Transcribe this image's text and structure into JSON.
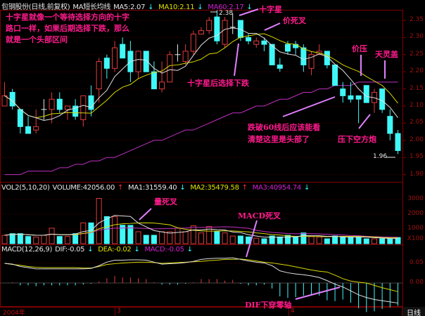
{
  "header": {
    "stock": "包钢股份(日线,前复权)",
    "indicator": "MA短长均线",
    "ma5": "MA5:2.07",
    "ma10": "MA10:2.11",
    "ma60": "MA60:2.17",
    "arrow_down": "↓",
    "arrow_up": "↑"
  },
  "volume_header": {
    "name": "VOL2(5,10,20)",
    "volume": "VOLUME:42056.00",
    "ma1": "MA1:31559.40",
    "ma2": "MA2:35479.58",
    "ma3": "MA3:40954.74"
  },
  "macd_header": {
    "name": "MACD(12,26,9)",
    "dif": "DIF:-0.05",
    "dea": "DEA:-0.02",
    "macd": "MACD:-0.05"
  },
  "annotations": {
    "intro_line1": "十字星就像一个等待选择方向的十字",
    "intro_line2": "路口一样，如果后期选择下跌，那么",
    "intro_line3": "就是一个头部区间",
    "doji": "十字星",
    "price_death_cross": "价死叉",
    "doji_then_fall": "十字星后选择下跌",
    "price_pressure": "价压",
    "heaven_cap": "天灵盖",
    "break60_line1": "跌破60线后应该能看",
    "break60_line2": "清楚这里是头部了",
    "bearish_cannon": "压下空方炮",
    "volume_death_cross": "量死叉",
    "macd_death_cross": "MACD死叉",
    "dif_cross_zero": "DIF下穿零轴",
    "high_label": "2.38",
    "low_label": "1.96"
  },
  "axis": {
    "price_ticks": [
      "2.35",
      "2.30",
      "2.25",
      "2.20",
      "2.15",
      "2.10",
      "2.05",
      "2.00",
      "1.95",
      "1.90"
    ],
    "volume_ticks": [
      "3000",
      "2000",
      "1000"
    ],
    "volume_unit": "X100",
    "macd_ticks": [
      "0.05",
      "0.00"
    ],
    "dates": [
      "2004年",
      "3",
      "4"
    ],
    "period": "日线"
  },
  "colors": {
    "up": "#e03c3c",
    "down": "#40f8f8",
    "ma5": "#e0e0e0",
    "ma10": "#d8d800",
    "ma60": "#c030c0",
    "grid": "#5a0000",
    "annotation": "#ff1a8c",
    "arrow": "#e080ff"
  },
  "chart_data": {
    "type": "candlestick",
    "price_ylim": [
      1.88,
      2.4
    ],
    "ohlc": [
      [
        2.1,
        2.17,
        2.1,
        2.13
      ],
      [
        2.14,
        2.15,
        2.09,
        2.1
      ],
      [
        2.09,
        2.09,
        2.02,
        2.04
      ],
      [
        2.04,
        2.07,
        2.02,
        2.02
      ],
      [
        2.03,
        2.09,
        2.02,
        2.04
      ],
      [
        2.09,
        2.12,
        2.06,
        2.09
      ],
      [
        2.09,
        2.14,
        2.05,
        2.12
      ],
      [
        2.12,
        2.14,
        2.08,
        2.09
      ],
      [
        2.09,
        2.1,
        2.06,
        2.1
      ],
      [
        2.1,
        2.12,
        2.06,
        2.07
      ],
      [
        2.06,
        2.13,
        2.04,
        2.13
      ],
      [
        2.13,
        2.16,
        2.07,
        2.09
      ],
      [
        2.15,
        2.24,
        2.11,
        2.23
      ],
      [
        2.24,
        2.25,
        2.18,
        2.21
      ],
      [
        2.21,
        2.29,
        2.2,
        2.27
      ],
      [
        2.28,
        2.3,
        2.24,
        2.24
      ],
      [
        2.26,
        2.29,
        2.17,
        2.2
      ],
      [
        2.2,
        2.26,
        2.18,
        2.26
      ],
      [
        2.26,
        2.26,
        2.2,
        2.2
      ],
      [
        2.2,
        2.23,
        2.15,
        2.15
      ],
      [
        2.15,
        2.23,
        2.14,
        2.17
      ],
      [
        2.17,
        2.26,
        2.17,
        2.25
      ],
      [
        2.25,
        2.28,
        2.23,
        2.25
      ],
      [
        2.23,
        2.28,
        2.22,
        2.26
      ],
      [
        2.26,
        2.32,
        2.25,
        2.31
      ],
      [
        2.31,
        2.33,
        2.31,
        2.32
      ],
      [
        2.32,
        2.36,
        2.31,
        2.35
      ],
      [
        2.36,
        2.38,
        2.28,
        2.29
      ],
      [
        2.28,
        2.36,
        2.27,
        2.35
      ],
      [
        2.33,
        2.37,
        2.31,
        2.33
      ],
      [
        2.35,
        2.35,
        2.29,
        2.3
      ],
      [
        2.3,
        2.31,
        2.28,
        2.29
      ],
      [
        2.28,
        2.3,
        2.27,
        2.29
      ],
      [
        2.29,
        2.3,
        2.26,
        2.28
      ],
      [
        2.28,
        2.28,
        2.22,
        2.22
      ],
      [
        2.22,
        2.24,
        2.2,
        2.21
      ],
      [
        2.28,
        2.29,
        2.25,
        2.26
      ],
      [
        2.28,
        2.29,
        2.25,
        2.27
      ],
      [
        2.27,
        2.28,
        2.2,
        2.22
      ],
      [
        2.21,
        2.26,
        2.19,
        2.25
      ],
      [
        2.25,
        2.28,
        2.25,
        2.26
      ],
      [
        2.26,
        2.26,
        2.21,
        2.22
      ],
      [
        2.22,
        2.22,
        2.16,
        2.16
      ],
      [
        2.15,
        2.17,
        2.11,
        2.13
      ],
      [
        2.13,
        2.17,
        2.11,
        2.12
      ],
      [
        2.13,
        2.13,
        2.05,
        2.12
      ],
      [
        2.16,
        2.16,
        2.11,
        2.11
      ],
      [
        2.11,
        2.15,
        2.08,
        2.14
      ],
      [
        2.15,
        2.15,
        2.08,
        2.09
      ],
      [
        2.07,
        2.09,
        2.0,
        2.02
      ],
      [
        2.02,
        2.03,
        1.96,
        1.97
      ]
    ],
    "ma60": [
      1.9,
      1.9,
      1.9,
      1.91,
      1.91,
      1.91,
      1.91,
      1.92,
      1.92,
      1.93,
      1.93,
      1.94,
      1.94,
      1.95,
      1.95,
      1.96,
      1.97,
      1.98,
      1.99,
      2.0,
      2.0,
      2.01,
      2.02,
      2.03,
      2.03,
      2.04,
      2.05,
      2.06,
      2.07,
      2.08,
      2.08,
      2.09,
      2.1,
      2.1,
      2.11,
      2.12,
      2.12,
      2.13,
      2.14,
      2.14,
      2.15,
      2.15,
      2.16,
      2.16,
      2.16,
      2.17,
      2.17,
      2.17,
      2.17,
      2.17,
      2.17
    ],
    "volume_ylim": [
      0,
      3300
    ],
    "volume": [
      570,
      680,
      680,
      490,
      445,
      570,
      1050,
      490,
      490,
      680,
      1410,
      1410,
      3070,
      1840,
      1840,
      1250,
      1240,
      810,
      570,
      570,
      810,
      810,
      1050,
      810,
      1210,
      730,
      1160,
      810,
      730,
      520,
      520,
      460,
      370,
      330,
      520,
      460,
      570,
      460,
      730,
      490,
      460,
      330,
      520,
      460,
      460,
      460,
      330,
      330,
      330,
      330,
      420
    ],
    "macd_ylim": [
      -0.065,
      0.095
    ],
    "dif": [
      0.05,
      0.048,
      0.042,
      0.039,
      0.036,
      0.036,
      0.036,
      0.036,
      0.036,
      0.036,
      0.036,
      0.037,
      0.044,
      0.053,
      0.058,
      0.058,
      0.059,
      0.059,
      0.058,
      0.053,
      0.048,
      0.049,
      0.05,
      0.052,
      0.055,
      0.06,
      0.062,
      0.063,
      0.063,
      0.064,
      0.06,
      0.056,
      0.053,
      0.051,
      0.044,
      0.031,
      0.026,
      0.023,
      0.021,
      0.018,
      0.014,
      0.006,
      -0.003,
      -0.01,
      -0.02,
      -0.03,
      -0.037,
      -0.042,
      -0.045,
      -0.048,
      -0.051
    ],
    "dea": [
      0.05,
      0.047,
      0.045,
      0.042,
      0.04,
      0.039,
      0.039,
      0.039,
      0.039,
      0.039,
      0.038,
      0.038,
      0.042,
      0.047,
      0.049,
      0.051,
      0.052,
      0.053,
      0.053,
      0.052,
      0.05,
      0.051,
      0.052,
      0.053,
      0.054,
      0.055,
      0.057,
      0.058,
      0.06,
      0.06,
      0.061,
      0.059,
      0.056,
      0.053,
      0.051,
      0.048,
      0.045,
      0.041,
      0.037,
      0.033,
      0.03,
      0.028,
      0.02,
      0.011,
      0.005,
      0.002,
      0.0,
      -0.006,
      -0.012,
      -0.017,
      -0.022
    ]
  }
}
